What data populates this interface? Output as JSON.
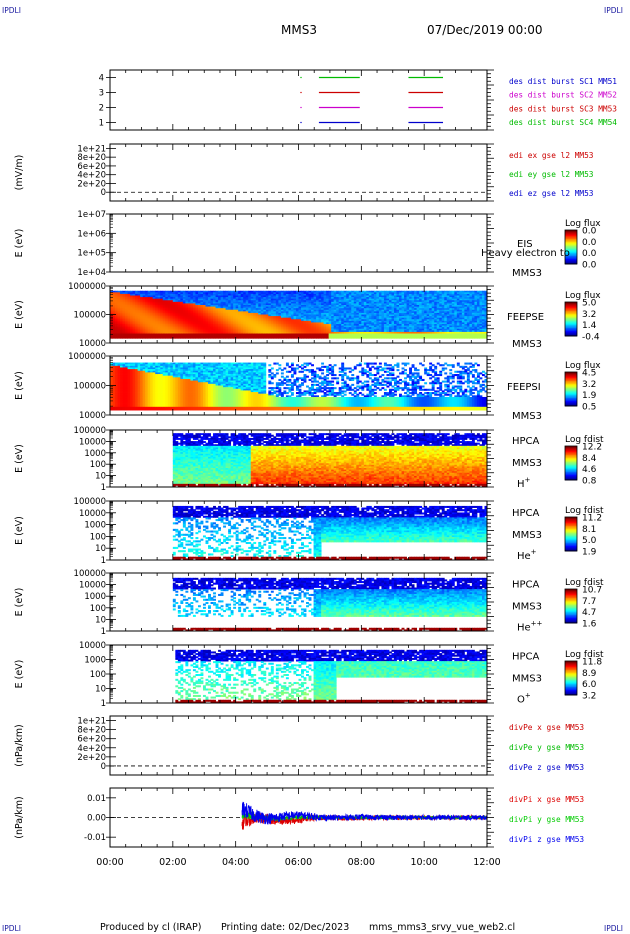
{
  "corner_labels": {
    "top_left": "IPDLI",
    "top_right": "IPDLI",
    "bottom_left": "IPDLI",
    "bottom_right": "IPDLI"
  },
  "header": {
    "mission": "MMS3",
    "date": "07/Dec/2019 00:00"
  },
  "footer": {
    "produced_by": "Produced by cl (IRAP)",
    "printing_date": "Printing date: 02/Dec/2023",
    "script": "mms_mms3_srvy_vue_web2.cl"
  },
  "time_axis": {
    "ticks": [
      "00:00",
      "02:00",
      "04:00",
      "06:00",
      "08:00",
      "10:00",
      "12:00"
    ],
    "range_hours": [
      0,
      12
    ]
  },
  "chart_data": [
    {
      "id": "burst",
      "type": "line",
      "ylabel": "",
      "ylim": [
        0.5,
        4.5
      ],
      "yticks": [
        "1",
        "2",
        "3",
        "4"
      ],
      "series": [
        {
          "name": "des dist burst SC1 MM51",
          "color": "#0000cc",
          "level": 1,
          "intervals": [
            [
              6.65,
              7.95
            ],
            [
              9.5,
              10.6
            ]
          ]
        },
        {
          "name": "des dist burst SC2 MM52",
          "color": "#cc00cc",
          "level": 2,
          "intervals": [
            [
              6.65,
              7.95
            ],
            [
              9.5,
              10.6
            ]
          ]
        },
        {
          "name": "des dist burst SC3 MM53",
          "color": "#cc0000",
          "level": 3,
          "intervals": [
            [
              6.65,
              7.95
            ],
            [
              9.5,
              10.6
            ]
          ]
        },
        {
          "name": "des dist burst SC4 MM54",
          "color": "#00bb00",
          "level": 4,
          "intervals": [
            [
              6.65,
              7.95
            ],
            [
              9.5,
              10.6
            ]
          ]
        }
      ]
    },
    {
      "id": "edi",
      "type": "line",
      "ylabel": "(mV/m)",
      "ylim": [
        -2e+20,
        1.1e+21
      ],
      "yticks": [
        "0",
        "2e+20",
        "4e+20",
        "6e+20",
        "8e+20",
        "1e+21"
      ],
      "ytick_values": [
        0,
        2e+20,
        4e+20,
        6e+20,
        8e+20,
        1e+21
      ],
      "zero_line": true,
      "series": [
        {
          "name": "edi ex gse l2 MM53",
          "color": "#cc0000"
        },
        {
          "name": "edi ey gse l2 MM53",
          "color": "#00bb00"
        },
        {
          "name": "edi ez gse l2 MM53",
          "color": "#0000cc"
        }
      ]
    },
    {
      "id": "eis",
      "type": "heatmap",
      "ylabel": "E (eV)",
      "yscale": "log",
      "yticks": [
        "1e+04",
        "1e+05",
        "1e+06",
        "1e+07"
      ],
      "side_labels": [
        "EIS",
        "MMS3"
      ],
      "overlay_label": "Heavy electron to",
      "colorbar": {
        "title": "Log flux",
        "ticks": [
          "0.0",
          "0.0",
          "0.0",
          "0.0"
        ]
      }
    },
    {
      "id": "feepse",
      "type": "heatmap",
      "ylabel": "E (eV)",
      "yscale": "log",
      "yticks": [
        "10000",
        "100000",
        "1000000"
      ],
      "side_labels": [
        "FEEPSE",
        "MMS3"
      ],
      "colorbar": {
        "title": "Log flux",
        "ticks": [
          "5.0",
          "3.2",
          "1.4",
          "-0.4"
        ]
      }
    },
    {
      "id": "feepsi",
      "type": "heatmap",
      "ylabel": "E (eV)",
      "yscale": "log",
      "yticks": [
        "10000",
        "100000",
        "1000000"
      ],
      "side_labels": [
        "FEEPSI",
        "MMS3"
      ],
      "colorbar": {
        "title": "Log flux",
        "ticks": [
          "4.5",
          "3.2",
          "1.9",
          "0.5"
        ]
      }
    },
    {
      "id": "hpca_h",
      "type": "heatmap",
      "ylabel": "E (eV)",
      "yscale": "log",
      "yticks": [
        "1",
        "10",
        "100",
        "1000",
        "10000",
        "100000"
      ],
      "side_labels": [
        "HPCA",
        "MMS3"
      ],
      "species": "H",
      "charge": "+",
      "colorbar": {
        "title": "Log fdist",
        "ticks": [
          "12.2",
          "8.4",
          "4.6",
          "0.8"
        ]
      }
    },
    {
      "id": "hpca_he",
      "type": "heatmap",
      "ylabel": "E (eV)",
      "yscale": "log",
      "yticks": [
        "1",
        "10",
        "100",
        "1000",
        "10000",
        "100000"
      ],
      "side_labels": [
        "HPCA",
        "MMS3"
      ],
      "species": "He",
      "charge": "+",
      "colorbar": {
        "title": "Log fdist",
        "ticks": [
          "11.2",
          "8.1",
          "5.0",
          "1.9"
        ]
      }
    },
    {
      "id": "hpca_he2",
      "type": "heatmap",
      "ylabel": "E (eV)",
      "yscale": "log",
      "yticks": [
        "1",
        "10",
        "100",
        "1000",
        "10000",
        "100000"
      ],
      "side_labels": [
        "HPCA",
        "MMS3"
      ],
      "species": "He",
      "charge": "++",
      "colorbar": {
        "title": "Log fdist",
        "ticks": [
          "10.7",
          "7.7",
          "4.7",
          "1.6"
        ]
      }
    },
    {
      "id": "hpca_o",
      "type": "heatmap",
      "ylabel": "E (eV)",
      "yscale": "log",
      "yticks": [
        "1",
        "10",
        "100",
        "1000",
        "10000"
      ],
      "side_labels": [
        "HPCA",
        "MMS3"
      ],
      "species": "O",
      "charge": "+",
      "colorbar": {
        "title": "Log fdist",
        "ticks": [
          "11.8",
          "8.9",
          "6.0",
          "3.2"
        ]
      }
    },
    {
      "id": "divpe",
      "type": "line",
      "ylabel": "(nPa/km)",
      "ylim": [
        -2e+20,
        1.1e+21
      ],
      "yticks": [
        "0",
        "2e+20",
        "4e+20",
        "6e+20",
        "8e+20",
        "1e+21"
      ],
      "ytick_values": [
        0,
        2e+20,
        4e+20,
        6e+20,
        8e+20,
        1e+21
      ],
      "zero_line": true,
      "series": [
        {
          "name": "divPe x gse MM53",
          "color": "#cc0000"
        },
        {
          "name": "divPe y gse MM53",
          "color": "#00bb00"
        },
        {
          "name": "divPe z gse MM53",
          "color": "#0000cc"
        }
      ]
    },
    {
      "id": "divpi",
      "type": "line",
      "ylabel": "(nPa/km)",
      "ylim": [
        -0.015,
        0.015
      ],
      "yticks": [
        "-0.01",
        "0.00",
        "0.01"
      ],
      "ytick_values": [
        -0.01,
        0,
        0.01
      ],
      "zero_line": true,
      "series": [
        {
          "name": "divPi x gse MM53",
          "color": "#dd0000",
          "start_hour": 4.2,
          "mean": -0.003,
          "amp": 0.0035
        },
        {
          "name": "divPi y gse MM53",
          "color": "#00cc00",
          "start_hour": 4.2,
          "mean": 0.0,
          "amp": 0.002
        },
        {
          "name": "divPi z gse MM53",
          "color": "#0000ee",
          "start_hour": 4.2,
          "mean": 0.002,
          "amp": 0.004
        }
      ]
    }
  ]
}
